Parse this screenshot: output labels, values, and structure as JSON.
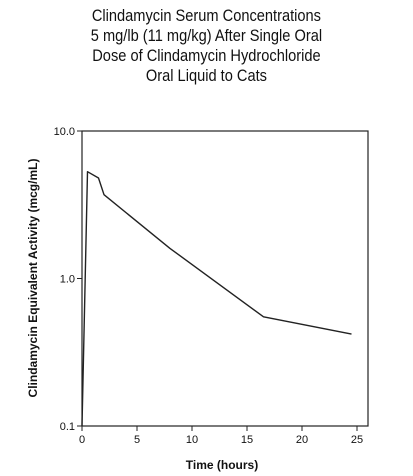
{
  "chart_data": {
    "type": "line",
    "title": [
      "Clindamycin Serum Concentrations",
      "5 mg/lb (11 mg/kg) After Single Oral",
      "Dose of Clindamycin Hydrochloride",
      "Oral Liquid to Cats"
    ],
    "xlabel": "Time (hours)",
    "ylabel": "Clindamycin Equivalent Activity (mcg/mL)",
    "xlim": [
      0,
      26
    ],
    "ylim": [
      0.1,
      10.0
    ],
    "yscale": "log",
    "xticks": [
      0,
      5,
      10,
      15,
      20,
      25
    ],
    "xtick_labels": [
      "0",
      "5",
      "10",
      "15",
      "20",
      "25"
    ],
    "yticks": [
      0.1,
      1.0,
      10.0
    ],
    "ytick_labels": [
      "0.1",
      "1.0",
      "10.0"
    ],
    "grid": false,
    "series": [
      {
        "x": [
          0,
          0.5,
          1.5,
          2.0,
          8.0,
          16.5,
          24.5
        ],
        "y": [
          0.1,
          5.3,
          4.8,
          3.7,
          1.6,
          0.55,
          0.42
        ]
      }
    ],
    "line_color": "#222222"
  }
}
